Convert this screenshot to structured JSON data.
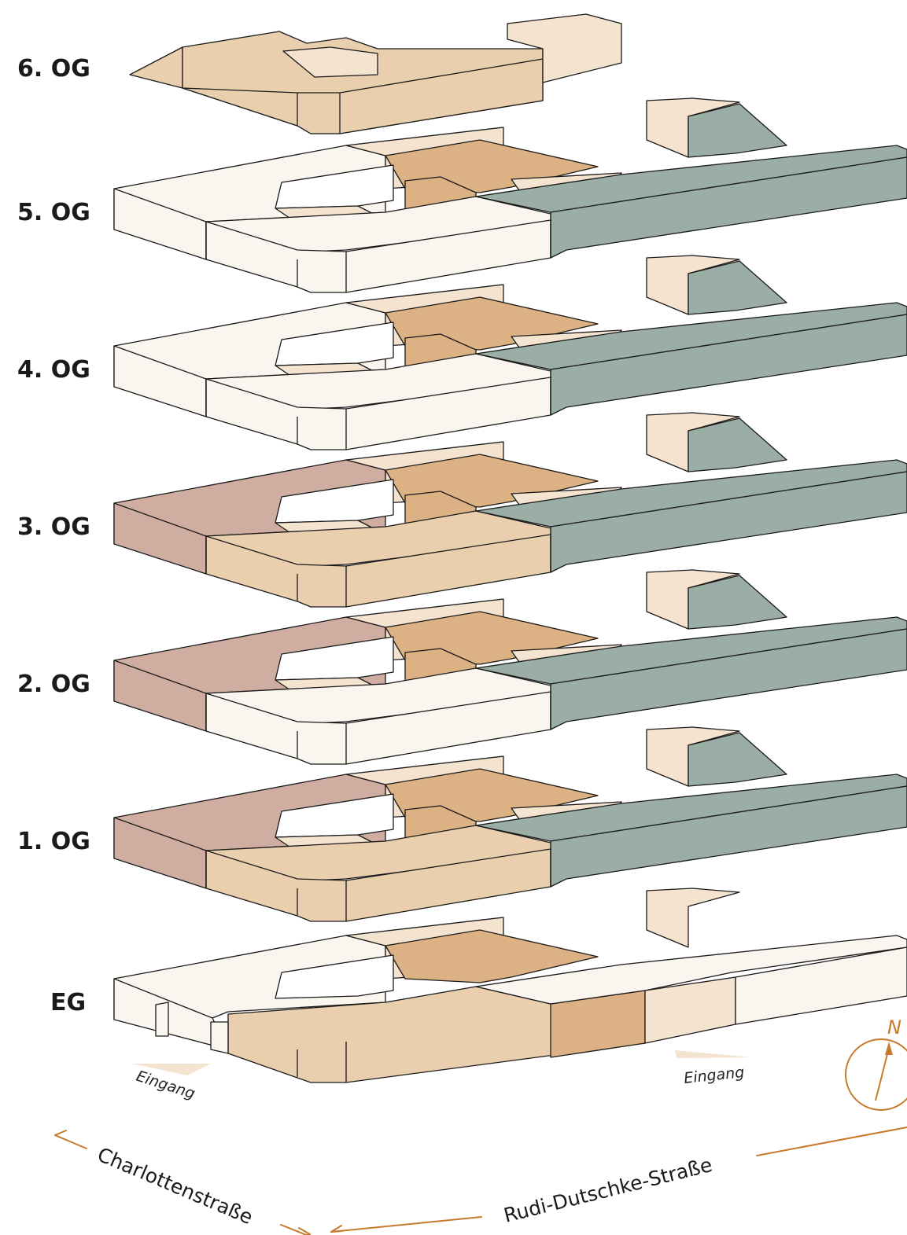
{
  "colors": {
    "cream": "#faf6ef",
    "light_beige": "#f3e3cf",
    "beige": "#e9cfae",
    "tan": "#dcb183",
    "rose": "#cfada1",
    "sage": "#9aaea6",
    "accent_orange": "#c87a2c",
    "entrance_marker": "#f3e3cf"
  },
  "floors": [
    {
      "label": "6. OG",
      "scheme": "attic"
    },
    {
      "label": "5. OG",
      "scheme": "light_with_sage"
    },
    {
      "label": "4. OG",
      "scheme": "light_with_sage"
    },
    {
      "label": "3. OG",
      "scheme": "rose_beige_sage"
    },
    {
      "label": "2. OG",
      "scheme": "rose_cream_sage"
    },
    {
      "label": "1. OG",
      "scheme": "rose_beige_sage"
    },
    {
      "label": "EG",
      "scheme": "ground"
    }
  ],
  "entrances": [
    {
      "label": "Eingang"
    },
    {
      "label": "Eingang"
    }
  ],
  "streets": [
    {
      "label": "Charlottenstraße"
    },
    {
      "label": "Rudi-Dutschke-Straße"
    }
  ],
  "compass": {
    "label": "N"
  }
}
